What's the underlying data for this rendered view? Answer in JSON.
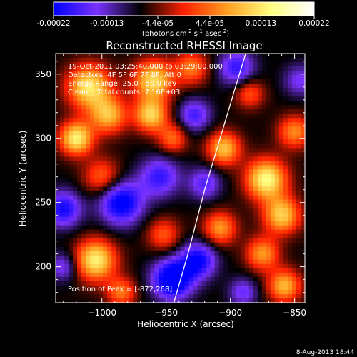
{
  "colorbar": {
    "tick_labels": [
      "-0.00022",
      "-0.00013",
      "-4.4e-05",
      "4.4e-05",
      "0.00013",
      "0.00022"
    ],
    "tick_values": [
      -0.00022,
      -0.00013,
      -4.4e-05,
      4.4e-05,
      0.00013,
      0.00022
    ],
    "range": [
      -0.00022,
      0.00022
    ],
    "unit_main": "(photons cm",
    "unit_exp1": "-2",
    "unit_mid": " s",
    "unit_exp2": "-1",
    "unit_end": " asec",
    "unit_exp3": "-2",
    "unit_close": ")",
    "colors": [
      "#0000ff",
      "#7a32ff",
      "#000000",
      "#ff2000",
      "#ffa020",
      "#ffff80",
      "#ffffff"
    ]
  },
  "chart_data": {
    "type": "heatmap",
    "title": "Reconstructed RHESSI Image",
    "xlabel": "Heliocentric X (arcsec)",
    "ylabel": "Heliocentric Y (arcsec)",
    "xlim": [
      -1036,
      -842
    ],
    "ylim": [
      172,
      366
    ],
    "x_tick_labels": [
      "−1000",
      "−950",
      "−900",
      "−850"
    ],
    "x_ticks": [
      -1000,
      -950,
      -900,
      -850
    ],
    "y_tick_labels": [
      "200",
      "250",
      "300",
      "350"
    ],
    "y_ticks": [
      200,
      250,
      300,
      350
    ],
    "peak": [
      -872,
      268
    ],
    "info_lines": [
      "19-Oct-2011 03:25:40.000 to 03:29:00.000",
      "Detectors: 4F 5F 6F 7F 8F, Att 0",
      "Energy Range: 25.0 - 50.0 keV",
      "Clean    Total counts: 7.16E+03"
    ],
    "peak_label": "Position of Peak = [-872,268]",
    "limb_curve": [
      [
        -944,
        172
      ],
      [
        -933,
        210
      ],
      [
        -920,
        260
      ],
      [
        -908,
        300
      ],
      [
        -896,
        340
      ],
      [
        -888,
        366
      ]
    ],
    "blobs": [
      {
        "x": -1010,
        "y": 340,
        "amp": 1.0,
        "s": 12
      },
      {
        "x": -1020,
        "y": 300,
        "amp": 1.05,
        "s": 9
      },
      {
        "x": -995,
        "y": 318,
        "amp": 0.8,
        "s": 10
      },
      {
        "x": -1000,
        "y": 270,
        "amp": 0.55,
        "s": 10
      },
      {
        "x": -960,
        "y": 345,
        "amp": 0.95,
        "s": 11
      },
      {
        "x": -962,
        "y": 318,
        "amp": 0.9,
        "s": 9
      },
      {
        "x": -945,
        "y": 300,
        "amp": 0.55,
        "s": 8
      },
      {
        "x": -930,
        "y": 355,
        "amp": 0.6,
        "s": 9
      },
      {
        "x": -1005,
        "y": 205,
        "amp": 1.05,
        "s": 11
      },
      {
        "x": -985,
        "y": 180,
        "amp": 0.6,
        "s": 8
      },
      {
        "x": -952,
        "y": 225,
        "amp": 0.5,
        "s": 9
      },
      {
        "x": -905,
        "y": 292,
        "amp": 0.85,
        "s": 9
      },
      {
        "x": -908,
        "y": 230,
        "amp": 0.7,
        "s": 9
      },
      {
        "x": -872,
        "y": 268,
        "amp": 1.1,
        "s": 11
      },
      {
        "x": -860,
        "y": 240,
        "amp": 0.9,
        "s": 10
      },
      {
        "x": -875,
        "y": 210,
        "amp": 0.7,
        "s": 9
      },
      {
        "x": -858,
        "y": 185,
        "amp": 0.8,
        "s": 9
      },
      {
        "x": -850,
        "y": 305,
        "amp": 0.65,
        "s": 9
      },
      {
        "x": -885,
        "y": 335,
        "amp": 0.5,
        "s": 8
      },
      {
        "x": -1030,
        "y": 245,
        "amp": -0.7,
        "s": 10
      },
      {
        "x": -985,
        "y": 250,
        "amp": -0.85,
        "s": 12
      },
      {
        "x": -955,
        "y": 270,
        "amp": -0.6,
        "s": 11
      },
      {
        "x": -945,
        "y": 190,
        "amp": -1.0,
        "s": 11
      },
      {
        "x": -925,
        "y": 205,
        "amp": -0.75,
        "s": 10
      },
      {
        "x": -895,
        "y": 355,
        "amp": -0.6,
        "s": 10
      },
      {
        "x": -928,
        "y": 318,
        "amp": -0.55,
        "s": 9
      },
      {
        "x": -920,
        "y": 265,
        "amp": -0.5,
        "s": 9
      },
      {
        "x": -1030,
        "y": 200,
        "amp": -0.45,
        "s": 8
      },
      {
        "x": -846,
        "y": 345,
        "amp": -0.4,
        "s": 9
      },
      {
        "x": -890,
        "y": 180,
        "amp": -0.45,
        "s": 8
      }
    ],
    "background_level": -0.35
  },
  "footer": {
    "timestamp": "8-Aug-2013 18:44"
  }
}
